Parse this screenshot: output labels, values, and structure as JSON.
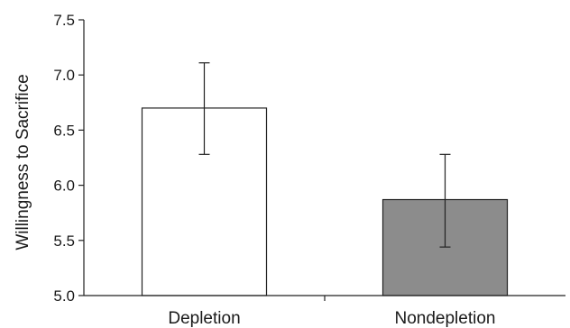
{
  "chart_data": {
    "type": "bar",
    "title": "",
    "xlabel": "",
    "ylabel": "Willingness to Sacrifice",
    "ylim": [
      5.0,
      7.5
    ],
    "yticks": [
      "5.0",
      "5.5",
      "6.0",
      "6.5",
      "7.0",
      "7.5"
    ],
    "categories": [
      "Depletion",
      "Nondepletion"
    ],
    "values": [
      6.7,
      5.87
    ],
    "error_low": [
      6.28,
      5.44
    ],
    "error_high": [
      7.11,
      6.28
    ],
    "bar_colors": [
      "#ffffff",
      "#8c8c8c"
    ],
    "grid": false,
    "legend": "none"
  }
}
